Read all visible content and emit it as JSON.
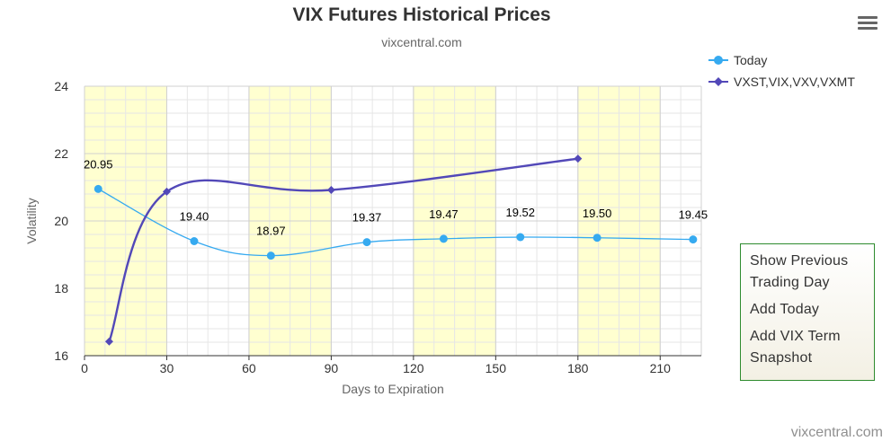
{
  "header": {
    "title": "VIX Futures Historical Prices",
    "subtitle": "vixcentral.com"
  },
  "menu": {
    "icon": "hamburger-menu-icon"
  },
  "legend": [
    {
      "label": "Today",
      "color": "#36aaf0",
      "marker": "circle"
    },
    {
      "label": "VXST,VIX,VXV,VXMT",
      "color": "#5248b8",
      "marker": "diamond"
    }
  ],
  "context_menu": {
    "items": [
      "Show Previous Trading Day",
      "Add Today",
      "Add VIX Term Snapshot"
    ]
  },
  "credit": "vixcentral.com",
  "chart_data": {
    "type": "line",
    "title": "VIX Futures Historical Prices",
    "subtitle": "vixcentral.com",
    "xlabel": "Days to Expiration",
    "ylabel": "Volatility",
    "xlim": [
      0,
      225
    ],
    "ylim": [
      16,
      24
    ],
    "x_ticks": [
      0,
      30,
      60,
      90,
      120,
      150,
      180,
      210
    ],
    "y_ticks": [
      16,
      18,
      20,
      22,
      24
    ],
    "grid": true,
    "shaded_bands": [
      [
        0,
        30
      ],
      [
        60,
        90
      ],
      [
        120,
        150
      ],
      [
        180,
        210
      ]
    ],
    "band_color": "#ffffd0",
    "legend_position": "top-right",
    "series": [
      {
        "name": "Today",
        "color": "#36aaf0",
        "marker": "circle",
        "points": [
          {
            "x": 5,
            "y": 20.95
          },
          {
            "x": 40,
            "y": 19.4
          },
          {
            "x": 68,
            "y": 18.97
          },
          {
            "x": 103,
            "y": 19.37
          },
          {
            "x": 131,
            "y": 19.47
          },
          {
            "x": 159,
            "y": 19.52
          },
          {
            "x": 187,
            "y": 19.5
          },
          {
            "x": 222,
            "y": 19.45
          }
        ],
        "labels": [
          "20.95",
          "19.40",
          "18.97",
          "19.37",
          "19.47",
          "19.52",
          "19.50",
          "19.45"
        ]
      },
      {
        "name": "VXST,VIX,VXV,VXMT",
        "color": "#5248b8",
        "marker": "diamond",
        "points": [
          {
            "x": 9,
            "y": 16.42
          },
          {
            "x": 30,
            "y": 20.87
          },
          {
            "x": 90,
            "y": 20.92
          },
          {
            "x": 180,
            "y": 21.85
          }
        ]
      }
    ]
  }
}
